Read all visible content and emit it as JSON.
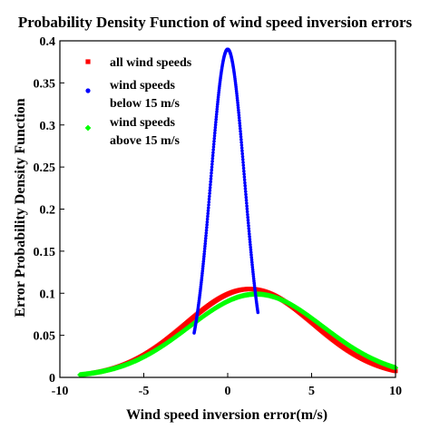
{
  "chart_data": {
    "type": "scatter",
    "title": "Probability Density Function of wind speed inversion errors",
    "xlabel": "Wind speed inversion error(m/s)",
    "ylabel": "Error Probability Density Function",
    "xlim": [
      -10,
      10
    ],
    "ylim": [
      0,
      0.4
    ],
    "x_ticks": [
      "-10",
      "-5",
      "0",
      "5",
      "10"
    ],
    "y_ticks": [
      "0",
      "0.05",
      "0.1",
      "0.15",
      "0.2",
      "0.25",
      "0.3",
      "0.35",
      "0.4"
    ],
    "grid": false,
    "legend_position": "top-left",
    "series": [
      {
        "name": "all wind speeds",
        "color": "#ff0000",
        "marker": "square",
        "distribution": "normal",
        "x_range": [
          -8.0,
          10.0
        ],
        "mean": 1.3,
        "peak_density": 0.105,
        "std": 3.8
      },
      {
        "name_lines": [
          "wind speeds",
          "below 15 m/s"
        ],
        "color": "#0000ff",
        "marker": "circle",
        "distribution": "normal",
        "x_range": [
          -2.0,
          1.8
        ],
        "mean": 0.0,
        "peak_density": 0.39,
        "std": 1.0
      },
      {
        "name_lines": [
          "wind speeds",
          "above 15 m/s"
        ],
        "color": "#00ff00",
        "marker": "diamond",
        "distribution": "normal",
        "x_range": [
          -8.8,
          10.0
        ],
        "mean": 1.7,
        "peak_density": 0.099,
        "std": 4.0
      }
    ]
  }
}
